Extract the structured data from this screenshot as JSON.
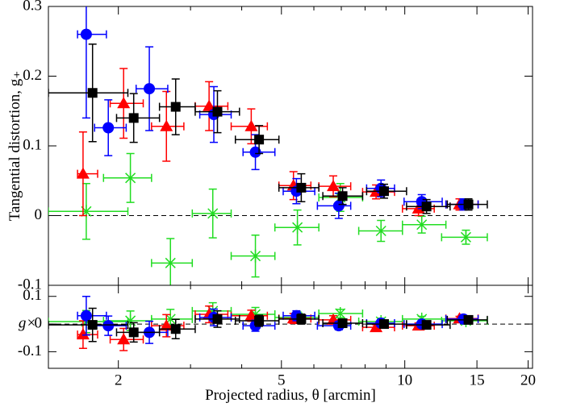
{
  "chart_data": [
    {
      "type": "scatter",
      "ylabel": "Tangential distortion, g₊",
      "ylim": [
        -0.1,
        0.3
      ],
      "yticks": [
        -0.1,
        0,
        0.1,
        0.2,
        0.3
      ],
      "hline": 0,
      "xlim": [
        1.35,
        20.5
      ],
      "xscale": "log",
      "series": [
        {
          "color": "#22dd22",
          "marker": "cross",
          "x": [
            1.67,
            2.14,
            2.68,
            3.4,
            4.32,
            5.47,
            6.96,
            8.75,
            11.0,
            14.1
          ],
          "xmin": [
            1.35,
            1.84,
            2.41,
            3.03,
            3.77,
            4.82,
            6.17,
            7.72,
            9.87,
            12.3
          ],
          "xmax": [
            2.11,
            2.41,
            3.03,
            3.77,
            4.82,
            6.17,
            7.89,
            9.87,
            12.6,
            15.9
          ],
          "values": [
            0.006,
            0.054,
            -0.068,
            0.003,
            -0.058,
            -0.017,
            0.026,
            -0.022,
            -0.013,
            -0.031
          ],
          "yerr": [
            0.04,
            0.035,
            0.035,
            0.035,
            0.03,
            0.025,
            0.02,
            0.015,
            0.012,
            0.01
          ]
        },
        {
          "color": "#ff0000",
          "marker": "triangle",
          "x": [
            1.64,
            2.06,
            2.62,
            3.33,
            4.22,
            5.35,
            6.69,
            8.51,
            10.8,
            13.6
          ],
          "xmin": [
            1.59,
            1.91,
            2.41,
            3.08,
            3.77,
            4.93,
            6.17,
            7.89,
            9.87,
            12.6
          ],
          "xmax": [
            1.78,
            2.3,
            2.89,
            3.7,
            4.62,
            5.9,
            7.38,
            9.44,
            11.8,
            15.1
          ],
          "values": [
            0.06,
            0.161,
            0.128,
            0.157,
            0.128,
            0.043,
            0.042,
            0.034,
            0.01,
            0.016
          ],
          "yerr": [
            0.06,
            0.05,
            0.05,
            0.035,
            0.025,
            0.02,
            0.015,
            0.01,
            0.01,
            0.008
          ]
        },
        {
          "color": "#0000ff",
          "marker": "circle",
          "x": [
            1.67,
            1.89,
            2.38,
            3.42,
            4.32,
            5.44,
            6.9,
            8.75,
            11.0,
            13.9
          ],
          "xmin": [
            1.59,
            1.75,
            2.21,
            3.16,
            4.03,
            5.05,
            6.12,
            8.07,
            9.96,
            12.6
          ],
          "xmax": [
            1.87,
            2.09,
            2.64,
            3.77,
            4.82,
            6.03,
            7.38,
            9.44,
            12.34,
            15.1
          ],
          "values": [
            0.26,
            0.126,
            0.182,
            0.145,
            0.091,
            0.035,
            0.014,
            0.039,
            0.02,
            0.016
          ],
          "yerr": [
            0.12,
            0.04,
            0.06,
            0.04,
            0.025,
            0.018,
            0.018,
            0.012,
            0.01,
            0.008
          ]
        },
        {
          "color": "#000000",
          "marker": "square",
          "x": [
            1.73,
            2.18,
            2.76,
            3.49,
            4.41,
            5.59,
            7.05,
            8.9,
            11.3,
            14.3
          ],
          "xmin": [
            1.35,
            1.98,
            2.52,
            3.08,
            3.86,
            4.93,
            6.31,
            8.07,
            10.1,
            12.7
          ],
          "xmax": [
            2.11,
            2.52,
            3.08,
            3.95,
            4.93,
            6.17,
            7.89,
            10.1,
            12.9,
            15.9
          ],
          "values": [
            0.176,
            0.14,
            0.156,
            0.149,
            0.109,
            0.04,
            0.028,
            0.035,
            0.013,
            0.016
          ],
          "yerr": [
            0.07,
            0.035,
            0.04,
            0.03,
            0.02,
            0.02,
            0.012,
            0.01,
            0.01,
            0.008
          ]
        }
      ]
    },
    {
      "type": "scatter",
      "ylabel": "g×",
      "xlabel": "Projected radius, θ [arcmin]",
      "ylim": [
        -0.16,
        0.14
      ],
      "yticks": [
        -0.1,
        0,
        0.1
      ],
      "hline": 0,
      "xlim": [
        1.35,
        20.5
      ],
      "xscale": "log",
      "xticks": [
        2,
        5,
        10,
        15,
        20
      ],
      "xminorticks": [
        3,
        4,
        6,
        7,
        8,
        9
      ],
      "series": [
        {
          "color": "#22dd22",
          "marker": "cross",
          "values": [
            0.009,
            0.012,
            0.018,
            0.047,
            0.035,
            0.024,
            0.038,
            0.009,
            0.018,
            0.012
          ],
          "yerr": [
            0.04,
            0.035,
            0.035,
            0.03,
            0.025,
            0.02,
            0.015,
            0.012,
            0.01,
            0.008
          ]
        },
        {
          "color": "#ff0000",
          "marker": "triangle",
          "values": [
            -0.038,
            -0.056,
            -0.006,
            0.035,
            0.03,
            0.02,
            0.015,
            -0.012,
            -0.006,
            0.02
          ],
          "yerr": [
            0.05,
            0.04,
            0.04,
            0.03,
            0.02,
            0.018,
            0.015,
            0.01,
            0.01,
            0.008
          ]
        },
        {
          "color": "#0000ff",
          "marker": "circle",
          "values": [
            0.03,
            -0.006,
            -0.03,
            0.024,
            -0.006,
            0.03,
            -0.006,
            0.003,
            0,
            0.018
          ],
          "yerr": [
            0.07,
            0.035,
            0.04,
            0.03,
            0.02,
            0.018,
            0.015,
            0.012,
            0.01,
            0.008
          ]
        },
        {
          "color": "#000000",
          "marker": "square",
          "values": [
            -0.003,
            -0.03,
            -0.018,
            0.018,
            0.012,
            0.018,
            0.003,
            0,
            -0.003,
            0.015
          ],
          "yerr": [
            0.06,
            0.035,
            0.035,
            0.03,
            0.02,
            0.018,
            0.012,
            0.01,
            0.01,
            0.008
          ]
        }
      ]
    }
  ]
}
